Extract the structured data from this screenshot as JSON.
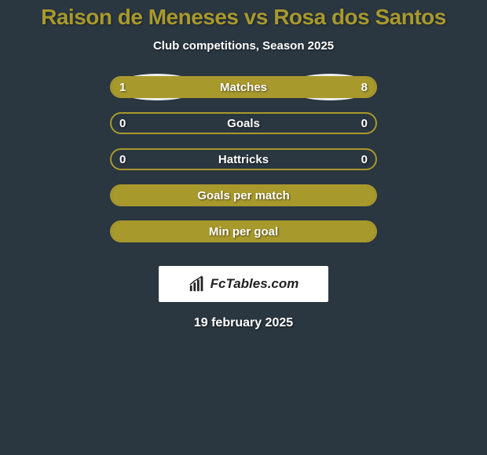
{
  "title": "Raison de Meneses vs Rosa dos Santos",
  "subtitle": "Club competitions, Season 2025",
  "colors": {
    "background": "#2a3640",
    "accent": "#a8992d",
    "avatar": "#eeeeee",
    "text": "#ffffff",
    "logo_bg": "#ffffff",
    "logo_text": "#222222"
  },
  "title_fontsize": 28,
  "subtitle_fontsize": 15,
  "bar_label_fontsize": 15,
  "bar_track_width": 340,
  "bar_track_height": 28,
  "bars": [
    {
      "label": "Matches",
      "left_value": "1",
      "right_value": "8",
      "left_pct": 18,
      "right_pct": 82,
      "show_avatars": true,
      "avatar_size": "lg"
    },
    {
      "label": "Goals",
      "left_value": "0",
      "right_value": "0",
      "left_pct": 0,
      "right_pct": 0,
      "show_avatars": true,
      "avatar_size": "sm"
    },
    {
      "label": "Hattricks",
      "left_value": "0",
      "right_value": "0",
      "left_pct": 0,
      "right_pct": 0,
      "show_avatars": false
    },
    {
      "label": "Goals per match",
      "left_value": "",
      "right_value": "",
      "left_pct": 100,
      "right_pct": 0,
      "full": true,
      "show_avatars": false
    },
    {
      "label": "Min per goal",
      "left_value": "",
      "right_value": "",
      "left_pct": 100,
      "right_pct": 0,
      "full": true,
      "show_avatars": false
    }
  ],
  "logo": {
    "text": "FcTables.com"
  },
  "date": "19 february 2025"
}
